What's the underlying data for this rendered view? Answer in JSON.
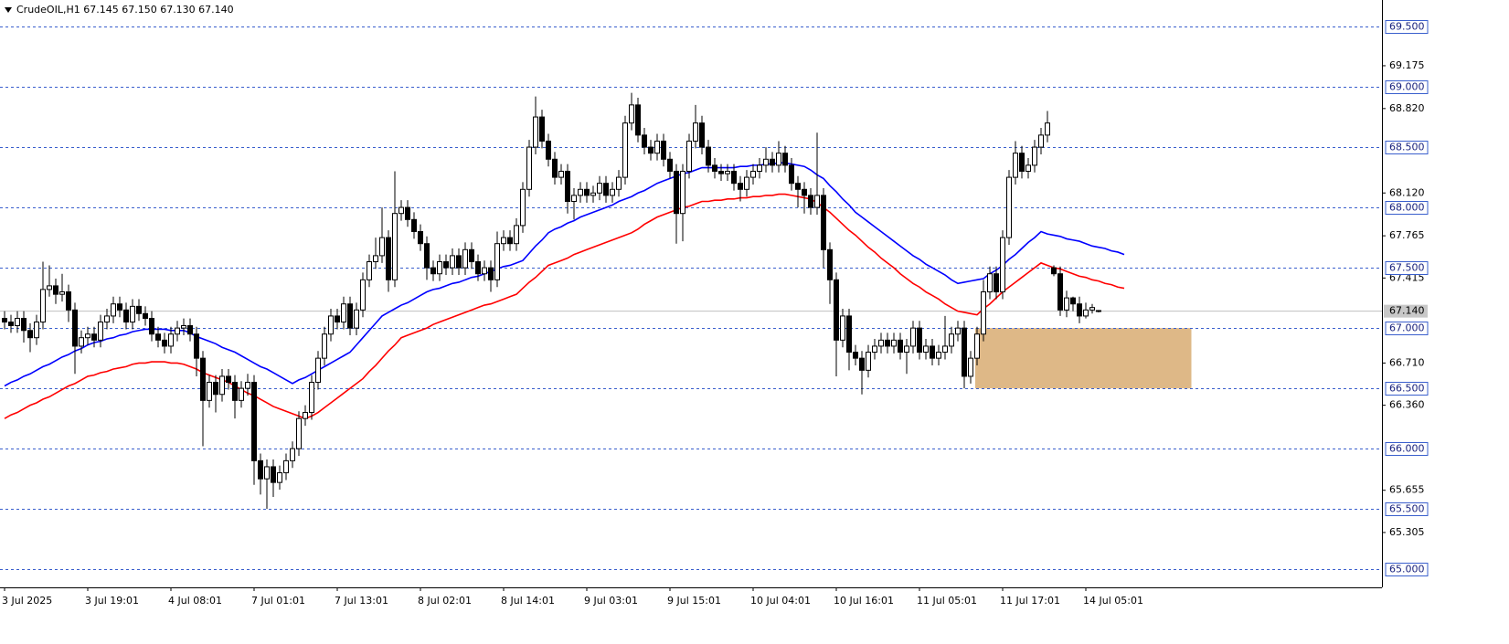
{
  "chart_data": {
    "type": "candlestick",
    "title": "CrudeOIL,H1 67.145 67.150 67.130 67.140",
    "categories": [
      "3 Jul 2025",
      null,
      null,
      null,
      null,
      null,
      null,
      null,
      null,
      null,
      null,
      null,
      null,
      "3 Jul 19:01",
      null,
      null,
      null,
      null,
      null,
      null,
      null,
      null,
      null,
      null,
      null,
      null,
      "4 Jul 08:01",
      null,
      null,
      null,
      null,
      null,
      null,
      null,
      null,
      null,
      null,
      null,
      null,
      "7 Jul 01:01",
      null,
      null,
      null,
      null,
      null,
      null,
      null,
      null,
      null,
      null,
      null,
      null,
      "7 Jul 13:01",
      null,
      null,
      null,
      null,
      null,
      null,
      null,
      null,
      null,
      null,
      null,
      null,
      "8 Jul 02:01",
      null,
      null,
      null,
      null,
      null,
      null,
      null,
      null,
      null,
      null,
      null,
      null,
      "8 Jul 14:01",
      null,
      null,
      null,
      null,
      null,
      null,
      null,
      null,
      null,
      null,
      null,
      null,
      "9 Jul 03:01",
      null,
      null,
      null,
      null,
      null,
      null,
      null,
      null,
      null,
      null,
      null,
      null,
      "9 Jul 15:01",
      null,
      null,
      null,
      null,
      null,
      null,
      null,
      null,
      null,
      null,
      null,
      null,
      "10 Jul 04:01",
      null,
      null,
      null,
      null,
      null,
      null,
      null,
      null,
      null,
      null,
      null,
      null,
      "10 Jul 16:01",
      null,
      null,
      null,
      null,
      null,
      null,
      null,
      null,
      null,
      null,
      null,
      null,
      "11 Jul 05:01",
      null,
      null,
      null,
      null,
      null,
      null,
      null,
      null,
      null,
      null,
      null,
      null,
      "11 Jul 17:01",
      null,
      null,
      null,
      null,
      null,
      null,
      null,
      null,
      null,
      null,
      null,
      null,
      "14 Jul 05:01",
      null,
      null,
      null,
      null,
      null,
      null
    ],
    "open": [
      67.08,
      67.05,
      67.02,
      67.08,
      66.98,
      66.92,
      67.05,
      67.32,
      67.35,
      67.28,
      67.3,
      67.15,
      66.85,
      66.92,
      66.95,
      66.9,
      67.05,
      67.1,
      67.2,
      67.15,
      67.05,
      67.18,
      67.12,
      67.08,
      66.95,
      66.9,
      66.85,
      66.95,
      67.0,
      67.02,
      66.95,
      66.75,
      66.4,
      66.55,
      66.45,
      66.6,
      66.55,
      66.4,
      66.5,
      66.55,
      65.9,
      65.75,
      65.85,
      65.72,
      65.8,
      65.9,
      66.0,
      66.25,
      66.3,
      66.55,
      66.75,
      66.95,
      67.1,
      67.05,
      67.2,
      67.0,
      67.15,
      67.4,
      67.55,
      67.6,
      67.75,
      67.4,
      67.95,
      68.0,
      67.9,
      67.8,
      67.7,
      67.5,
      67.45,
      67.55,
      67.5,
      67.6,
      67.5,
      67.65,
      67.55,
      67.45,
      67.5,
      67.4,
      67.7,
      67.75,
      67.7,
      67.85,
      68.15,
      68.5,
      68.75,
      68.55,
      68.4,
      68.25,
      68.3,
      68.05,
      68.1,
      68.15,
      68.1,
      68.12,
      68.2,
      68.1,
      68.15,
      68.25,
      68.7,
      68.85,
      68.6,
      68.5,
      68.45,
      68.55,
      68.4,
      68.3,
      67.95,
      68.3,
      68.55,
      68.7,
      68.5,
      68.35,
      68.3,
      68.28,
      68.3,
      68.2,
      68.15,
      68.25,
      68.3,
      68.35,
      68.4,
      68.35,
      68.45,
      68.35,
      68.2,
      68.15,
      68.1,
      68.0,
      68.1,
      67.65,
      67.4,
      66.9,
      67.1,
      66.8,
      66.75,
      66.65,
      66.8,
      66.85,
      66.9,
      66.85,
      66.9,
      66.8,
      66.85,
      67.0,
      66.8,
      66.85,
      66.75,
      66.8,
      66.85,
      66.95,
      67.0,
      66.6,
      66.75,
      66.95,
      67.3,
      67.45,
      67.3,
      67.75,
      68.25,
      68.45,
      68.3,
      68.35,
      68.5,
      68.6,
      67.5,
      67.45,
      67.15,
      67.25,
      67.2,
      67.1,
      67.15,
      67.145,
      null,
      null,
      null,
      null
    ],
    "high": [
      67.14,
      67.11,
      67.14,
      67.14,
      67.04,
      67.11,
      67.55,
      67.52,
      67.41,
      67.45,
      67.36,
      67.21,
      66.98,
      67.01,
      67.01,
      67.11,
      67.16,
      67.26,
      67.26,
      67.21,
      67.24,
      67.24,
      67.18,
      67.14,
      67.01,
      66.96,
      67.01,
      67.06,
      67.08,
      67.08,
      67.01,
      66.81,
      66.61,
      66.61,
      66.66,
      66.66,
      66.61,
      66.56,
      66.62,
      66.61,
      65.96,
      65.91,
      65.91,
      65.86,
      65.96,
      66.06,
      66.31,
      66.36,
      66.61,
      66.81,
      67.01,
      67.16,
      67.16,
      67.26,
      67.26,
      67.21,
      67.46,
      67.61,
      67.75,
      68.0,
      67.81,
      68.3,
      68.06,
      68.06,
      67.96,
      67.86,
      67.76,
      67.56,
      67.61,
      67.61,
      67.66,
      67.66,
      67.71,
      67.71,
      67.61,
      67.56,
      67.56,
      67.8,
      67.81,
      67.81,
      67.91,
      68.21,
      68.56,
      68.92,
      68.81,
      68.61,
      68.46,
      68.36,
      68.36,
      68.16,
      68.21,
      68.21,
      68.18,
      68.26,
      68.26,
      68.21,
      68.31,
      68.76,
      68.95,
      68.91,
      68.66,
      68.56,
      68.61,
      68.61,
      68.46,
      68.36,
      68.36,
      68.61,
      68.85,
      68.76,
      68.56,
      68.41,
      68.36,
      68.36,
      68.36,
      68.26,
      68.31,
      68.36,
      68.41,
      68.5,
      68.46,
      68.55,
      68.51,
      68.41,
      68.26,
      68.21,
      68.16,
      68.62,
      68.16,
      67.71,
      67.46,
      67.16,
      67.16,
      66.86,
      66.81,
      66.86,
      66.91,
      66.96,
      66.96,
      66.96,
      66.96,
      66.91,
      67.06,
      67.06,
      66.91,
      66.91,
      66.86,
      67.1,
      67.01,
      67.06,
      67.06,
      66.81,
      67.01,
      67.4,
      67.51,
      67.51,
      67.81,
      68.31,
      68.55,
      68.51,
      68.41,
      68.56,
      68.66,
      68.8,
      67.52,
      67.51,
      67.31,
      67.26,
      67.26,
      67.21,
      67.2,
      67.15,
      null,
      null,
      null,
      null
    ],
    "low": [
      66.99,
      66.96,
      66.96,
      66.88,
      66.8,
      66.86,
      66.99,
      67.26,
      67.2,
      67.22,
      67.05,
      66.62,
      66.79,
      66.86,
      66.84,
      66.84,
      66.99,
      67.04,
      67.09,
      66.99,
      66.99,
      67.06,
      67.02,
      66.89,
      66.84,
      66.79,
      66.79,
      66.89,
      66.94,
      66.89,
      66.6,
      66.02,
      66.34,
      66.3,
      66.39,
      66.49,
      66.25,
      66.34,
      66.44,
      65.7,
      65.62,
      65.5,
      65.6,
      65.66,
      65.74,
      65.84,
      65.94,
      66.19,
      66.24,
      66.49,
      66.69,
      66.89,
      66.99,
      66.99,
      66.94,
      66.94,
      67.09,
      67.34,
      67.49,
      67.54,
      67.3,
      67.34,
      67.89,
      67.84,
      67.74,
      67.64,
      67.4,
      67.39,
      67.39,
      67.44,
      67.44,
      67.44,
      67.44,
      67.49,
      67.39,
      67.39,
      67.3,
      67.34,
      67.64,
      67.64,
      67.64,
      67.79,
      68.09,
      68.44,
      68.49,
      68.34,
      68.19,
      68.19,
      67.95,
      67.9,
      68.04,
      68.04,
      68.04,
      68.06,
      68.04,
      68.04,
      68.09,
      68.19,
      68.64,
      68.54,
      68.44,
      68.39,
      68.39,
      68.34,
      68.24,
      67.7,
      67.72,
      68.24,
      68.49,
      68.44,
      68.29,
      68.24,
      68.22,
      68.22,
      68.14,
      68.05,
      68.09,
      68.19,
      68.24,
      68.29,
      68.29,
      68.29,
      68.29,
      68.14,
      68.0,
      67.95,
      67.94,
      67.94,
      67.5,
      67.2,
      66.6,
      66.84,
      66.65,
      66.69,
      66.45,
      66.59,
      66.74,
      66.79,
      66.79,
      66.79,
      66.74,
      66.62,
      66.79,
      66.74,
      66.74,
      66.69,
      66.69,
      66.74,
      66.79,
      66.89,
      66.5,
      66.54,
      66.69,
      66.89,
      67.24,
      67.24,
      67.24,
      67.69,
      68.19,
      68.24,
      68.24,
      68.29,
      68.44,
      68.54,
      67.43,
      67.1,
      67.09,
      67.14,
      67.04,
      67.08,
      67.12,
      67.13,
      null,
      null,
      null,
      null
    ],
    "close": [
      67.05,
      67.02,
      67.08,
      66.98,
      66.92,
      67.05,
      67.32,
      67.35,
      67.28,
      67.3,
      67.15,
      66.85,
      66.92,
      66.95,
      66.9,
      67.05,
      67.1,
      67.2,
      67.15,
      67.05,
      67.18,
      67.12,
      67.08,
      66.95,
      66.9,
      66.85,
      66.95,
      67.0,
      67.02,
      66.95,
      66.75,
      66.4,
      66.55,
      66.45,
      66.6,
      66.55,
      66.4,
      66.5,
      66.55,
      65.9,
      65.75,
      65.85,
      65.72,
      65.8,
      65.9,
      66.0,
      66.25,
      66.3,
      66.55,
      66.75,
      66.95,
      67.1,
      67.05,
      67.2,
      67.0,
      67.15,
      67.4,
      67.55,
      67.6,
      67.75,
      67.4,
      67.95,
      68.0,
      67.9,
      67.8,
      67.7,
      67.5,
      67.45,
      67.55,
      67.5,
      67.6,
      67.5,
      67.65,
      67.55,
      67.45,
      67.5,
      67.4,
      67.7,
      67.75,
      67.7,
      67.85,
      68.15,
      68.5,
      68.75,
      68.55,
      68.4,
      68.25,
      68.3,
      68.05,
      68.1,
      68.15,
      68.1,
      68.12,
      68.2,
      68.1,
      68.15,
      68.25,
      68.7,
      68.85,
      68.6,
      68.5,
      68.45,
      68.55,
      68.4,
      68.3,
      67.95,
      68.3,
      68.55,
      68.7,
      68.5,
      68.35,
      68.3,
      68.28,
      68.3,
      68.2,
      68.15,
      68.25,
      68.3,
      68.35,
      68.4,
      68.35,
      68.45,
      68.35,
      68.2,
      68.15,
      68.1,
      68.0,
      68.1,
      67.65,
      67.4,
      66.9,
      67.1,
      66.8,
      66.75,
      66.65,
      66.8,
      66.85,
      66.9,
      66.85,
      66.9,
      66.8,
      66.85,
      67.0,
      66.8,
      66.85,
      66.75,
      66.8,
      66.85,
      66.95,
      67.0,
      66.6,
      66.75,
      66.95,
      67.3,
      67.45,
      67.3,
      67.75,
      68.25,
      68.45,
      68.3,
      68.35,
      68.5,
      68.6,
      68.7,
      67.45,
      67.15,
      67.25,
      67.2,
      67.1,
      67.15,
      67.17,
      67.14,
      null,
      null,
      null,
      null
    ],
    "series": [
      {
        "color": "#0000ff",
        "values": [
          66.52,
          66.55,
          66.57,
          66.6,
          66.62,
          66.65,
          66.68,
          66.7,
          66.73,
          66.76,
          66.78,
          66.81,
          66.83,
          66.86,
          66.88,
          66.89,
          66.91,
          66.92,
          66.94,
          66.95,
          66.97,
          66.98,
          66.99,
          66.99,
          66.99,
          66.99,
          66.98,
          66.98,
          66.98,
          66.96,
          66.93,
          66.91,
          66.89,
          66.87,
          66.84,
          66.82,
          66.8,
          66.77,
          66.74,
          66.71,
          66.68,
          66.66,
          66.63,
          66.6,
          66.57,
          66.54,
          66.57,
          66.59,
          66.62,
          66.65,
          66.68,
          66.71,
          66.74,
          66.77,
          66.8,
          66.86,
          66.92,
          66.98,
          67.04,
          67.1,
          67.13,
          67.16,
          67.19,
          67.21,
          67.24,
          67.27,
          67.3,
          67.32,
          67.33,
          67.35,
          67.37,
          67.38,
          67.4,
          67.42,
          67.43,
          67.45,
          67.47,
          67.49,
          67.51,
          67.52,
          67.54,
          67.56,
          67.62,
          67.68,
          67.73,
          67.79,
          67.82,
          67.84,
          67.87,
          67.89,
          67.92,
          67.94,
          67.96,
          67.98,
          68.0,
          68.02,
          68.05,
          68.07,
          68.09,
          68.12,
          68.14,
          68.17,
          68.2,
          68.22,
          68.24,
          68.26,
          68.28,
          68.29,
          68.31,
          68.33,
          68.33,
          68.33,
          68.33,
          68.33,
          68.33,
          68.34,
          68.34,
          68.35,
          68.35,
          68.36,
          68.36,
          68.37,
          68.37,
          68.36,
          68.35,
          68.34,
          68.31,
          68.27,
          68.24,
          68.18,
          68.13,
          68.07,
          68.02,
          67.96,
          67.92,
          67.88,
          67.84,
          67.8,
          67.76,
          67.72,
          67.68,
          67.64,
          67.6,
          67.57,
          67.53,
          67.5,
          67.47,
          67.44,
          67.4,
          67.37,
          67.38,
          67.39,
          67.4,
          67.41,
          67.45,
          67.48,
          67.52,
          67.57,
          67.61,
          67.66,
          67.71,
          67.75,
          67.8,
          67.78,
          67.77,
          67.76,
          67.74,
          67.73,
          67.72,
          67.7,
          67.68,
          67.67,
          67.66,
          67.64,
          67.63,
          67.61
        ]
      },
      {
        "color": "#ff0000",
        "values": [
          66.25,
          66.28,
          66.3,
          66.33,
          66.36,
          66.38,
          66.41,
          66.43,
          66.46,
          66.49,
          66.52,
          66.54,
          66.57,
          66.6,
          66.61,
          66.63,
          66.64,
          66.66,
          66.67,
          66.68,
          66.7,
          66.71,
          66.71,
          66.72,
          66.72,
          66.72,
          66.71,
          66.71,
          66.7,
          66.68,
          66.66,
          66.63,
          66.61,
          66.59,
          66.57,
          66.55,
          66.52,
          66.49,
          66.46,
          66.44,
          66.41,
          66.38,
          66.35,
          66.33,
          66.31,
          66.29,
          66.27,
          66.25,
          66.27,
          66.3,
          66.34,
          66.38,
          66.42,
          66.46,
          66.5,
          66.54,
          66.58,
          66.64,
          66.69,
          66.75,
          66.81,
          66.86,
          66.92,
          66.94,
          66.96,
          66.98,
          67.0,
          67.03,
          67.05,
          67.07,
          67.09,
          67.11,
          67.13,
          67.15,
          67.17,
          67.19,
          67.2,
          67.22,
          67.24,
          67.26,
          67.28,
          67.33,
          67.38,
          67.42,
          67.47,
          67.52,
          67.54,
          67.56,
          67.58,
          67.61,
          67.63,
          67.65,
          67.67,
          67.69,
          67.71,
          67.73,
          67.75,
          67.77,
          67.79,
          67.82,
          67.86,
          67.89,
          67.92,
          67.94,
          67.96,
          67.98,
          68.0,
          68.01,
          68.03,
          68.05,
          68.05,
          68.06,
          68.06,
          68.07,
          68.07,
          68.08,
          68.08,
          68.09,
          68.09,
          68.1,
          68.1,
          68.11,
          68.11,
          68.1,
          68.09,
          68.08,
          68.07,
          68.04,
          68.0,
          67.96,
          67.91,
          67.86,
          67.81,
          67.77,
          67.72,
          67.67,
          67.63,
          67.58,
          67.54,
          67.5,
          67.45,
          67.41,
          67.37,
          67.34,
          67.3,
          67.27,
          67.24,
          67.2,
          67.17,
          67.14,
          67.13,
          67.12,
          67.11,
          67.16,
          67.2,
          67.25,
          67.3,
          67.34,
          67.38,
          67.42,
          67.46,
          67.5,
          67.54,
          67.52,
          67.5,
          67.49,
          67.47,
          67.45,
          67.43,
          67.42,
          67.4,
          67.39,
          67.37,
          67.36,
          67.34,
          67.33
        ]
      }
    ],
    "up_color": "#ffffff",
    "down_color": "#000000",
    "ylim": [
      64.85,
      69.72
    ],
    "yticks": [
      {
        "value": 69.175,
        "label": "69.175"
      },
      {
        "value": 68.82,
        "label": "68.820"
      },
      {
        "value": 68.12,
        "label": "68.120"
      },
      {
        "value": 67.765,
        "label": "67.765"
      },
      {
        "value": 67.415,
        "label": "67.415"
      },
      {
        "value": 66.71,
        "label": "66.710"
      },
      {
        "value": 66.36,
        "label": "66.360"
      },
      {
        "value": 65.655,
        "label": "65.655"
      },
      {
        "value": 65.305,
        "label": "65.305"
      }
    ],
    "levels": [
      {
        "value": 69.5,
        "label": "69.500"
      },
      {
        "value": 69,
        "label": "69.000"
      },
      {
        "value": 68.5,
        "label": "68.500"
      },
      {
        "value": 68,
        "label": "68.000"
      },
      {
        "value": 67.5,
        "label": "67.500"
      },
      {
        "value": 67,
        "label": "67.000"
      },
      {
        "value": 66.5,
        "label": "66.500"
      },
      {
        "value": 66,
        "label": "66.000"
      },
      {
        "value": 65.5,
        "label": "65.500"
      },
      {
        "value": 65,
        "label": "65.000"
      }
    ],
    "level_color": "#3a5fcd",
    "last_price": {
      "value": 67.14,
      "label": "67.140"
    },
    "zone": {
      "from": 66.5,
      "to": 67,
      "color": "#deb887"
    }
  }
}
